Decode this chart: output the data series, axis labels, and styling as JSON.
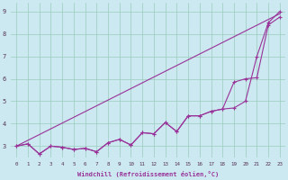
{
  "xlabel": "Windchill (Refroidissement éolien,°C)",
  "bg_color": "#cce8f0",
  "line_color": "#993399",
  "grid_color": "#99ccbb",
  "xlim": [
    -0.5,
    23.5
  ],
  "ylim": [
    2.5,
    9.4
  ],
  "xticks": [
    0,
    1,
    2,
    3,
    4,
    5,
    6,
    7,
    8,
    9,
    10,
    11,
    12,
    13,
    14,
    15,
    16,
    17,
    18,
    19,
    20,
    21,
    22,
    23
  ],
  "yticks": [
    3,
    4,
    5,
    6,
    7,
    8,
    9
  ],
  "line1_x": [
    0,
    1,
    2,
    3,
    4,
    5,
    6,
    7,
    8,
    9,
    10,
    11,
    12,
    13,
    14,
    15,
    16,
    17,
    18,
    19,
    20,
    21,
    22,
    23
  ],
  "line1_y": [
    3.0,
    3.1,
    2.65,
    3.0,
    2.95,
    2.85,
    2.9,
    2.75,
    3.15,
    3.3,
    3.05,
    3.6,
    3.55,
    4.05,
    3.65,
    4.35,
    4.35,
    4.55,
    4.65,
    4.7,
    5.0,
    7.0,
    8.5,
    9.0
  ],
  "line2_x": [
    0,
    1,
    2,
    3,
    4,
    5,
    6,
    7,
    8,
    9,
    10,
    11,
    12,
    13,
    14,
    15,
    16,
    17,
    18,
    19,
    20,
    21,
    22,
    23
  ],
  "line2_y": [
    3.0,
    3.1,
    2.65,
    3.0,
    2.95,
    2.85,
    2.9,
    2.75,
    3.15,
    3.3,
    3.05,
    3.6,
    3.55,
    4.05,
    3.65,
    4.35,
    4.35,
    4.55,
    4.65,
    5.85,
    6.0,
    6.05,
    8.4,
    8.75
  ],
  "line3_x": [
    0,
    23
  ],
  "line3_y": [
    3.0,
    8.9
  ]
}
